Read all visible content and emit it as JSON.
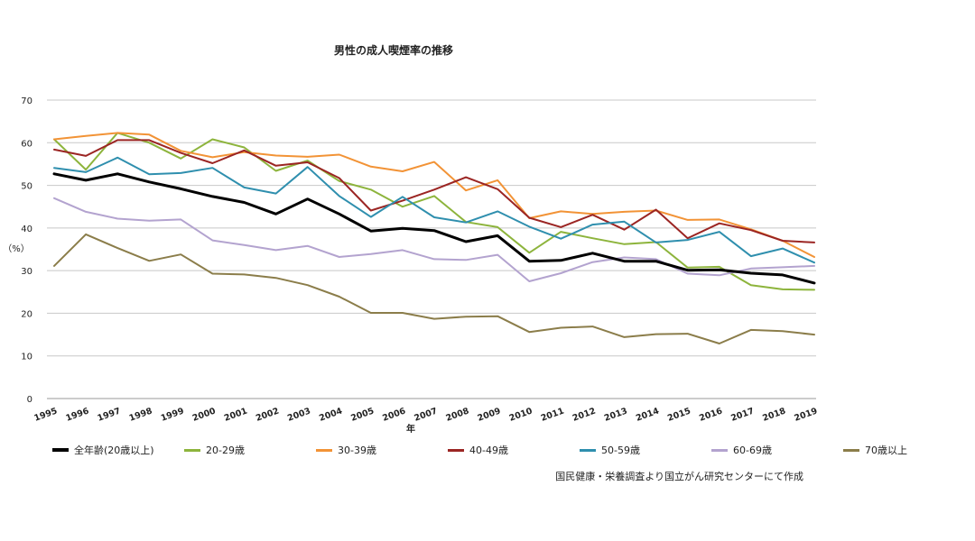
{
  "chart_data": {
    "type": "line",
    "title": "男性の成人喫煙率の推移",
    "xlabel": "年",
    "ylabel": "（%）",
    "ylim": [
      0,
      70
    ],
    "yticks": [
      0,
      10,
      20,
      30,
      40,
      50,
      60,
      70
    ],
    "grid": true,
    "legend_position": "bottom",
    "categories": [
      "1995",
      "1996",
      "1997",
      "1998",
      "1999",
      "2000",
      "2001",
      "2002",
      "2003",
      "2004",
      "2005",
      "2006",
      "2007",
      "2008",
      "2009",
      "2010",
      "2011",
      "2012",
      "2013",
      "2014",
      "2015",
      "2016",
      "2017",
      "2018",
      "2019"
    ],
    "series": [
      {
        "name": "全年齢(20歳以上)",
        "color": "#000000",
        "width": 3,
        "values": [
          52.7,
          51.2,
          52.7,
          50.8,
          49.2,
          47.4,
          46.0,
          43.3,
          46.8,
          43.3,
          39.3,
          39.9,
          39.4,
          36.8,
          38.2,
          32.2,
          32.4,
          34.1,
          32.2,
          32.2,
          30.1,
          30.2,
          29.4,
          29.0,
          27.1
        ]
      },
      {
        "name": "20-29歳",
        "color": "#8db43c",
        "width": 2,
        "values": [
          60.8,
          53.7,
          62.3,
          60.0,
          56.3,
          60.8,
          58.9,
          53.4,
          55.8,
          51.0,
          49.0,
          45.0,
          47.5,
          41.4,
          40.2,
          34.2,
          39.1,
          37.6,
          36.2,
          36.7,
          30.7,
          30.9,
          26.6,
          25.6,
          25.5
        ]
      },
      {
        "name": "30-39歳",
        "color": "#f29336",
        "width": 2,
        "values": [
          60.8,
          61.6,
          62.3,
          61.9,
          58.1,
          56.6,
          57.8,
          57.0,
          56.7,
          57.2,
          54.4,
          53.3,
          55.5,
          48.8,
          51.2,
          42.3,
          43.9,
          43.3,
          43.8,
          44.1,
          41.9,
          42.0,
          39.7,
          37.0,
          33.2
        ]
      },
      {
        "name": "40-49歳",
        "color": "#9b2523",
        "width": 2,
        "values": [
          58.4,
          56.9,
          60.6,
          60.6,
          57.6,
          55.2,
          58.2,
          54.6,
          55.4,
          51.7,
          44.1,
          46.4,
          49.0,
          51.9,
          49.1,
          42.4,
          40.2,
          43.1,
          39.6,
          44.3,
          37.6,
          41.1,
          39.5,
          37.0,
          36.6
        ]
      },
      {
        "name": "50-59歳",
        "color": "#2f8fae",
        "width": 2,
        "values": [
          54.1,
          53.1,
          56.5,
          52.6,
          52.9,
          54.1,
          49.5,
          48.1,
          54.3,
          47.5,
          42.6,
          47.3,
          42.5,
          41.3,
          43.9,
          40.3,
          37.5,
          40.8,
          41.5,
          36.6,
          37.2,
          39.1,
          33.4,
          35.2,
          31.9
        ]
      },
      {
        "name": "60-69歳",
        "color": "#b3a3cf",
        "width": 2,
        "values": [
          47.0,
          43.8,
          42.2,
          41.7,
          42.0,
          37.1,
          36.0,
          34.8,
          35.8,
          33.2,
          33.9,
          34.8,
          32.7,
          32.5,
          33.7,
          27.5,
          29.4,
          32.0,
          33.1,
          32.7,
          29.3,
          28.9,
          30.5,
          30.8,
          31.1
        ]
      },
      {
        "name": "70歳以上",
        "color": "#8b7d4a",
        "width": 2,
        "values": [
          31.1,
          38.5,
          35.3,
          32.3,
          33.8,
          29.3,
          29.1,
          28.3,
          26.6,
          23.9,
          20.1,
          20.1,
          18.7,
          19.2,
          19.3,
          15.6,
          16.6,
          16.9,
          14.4,
          15.1,
          15.2,
          12.9,
          16.1,
          15.8,
          15.0
        ]
      }
    ]
  },
  "source_note": "国民健康・栄養調査より国立がん研究センターにて作成"
}
